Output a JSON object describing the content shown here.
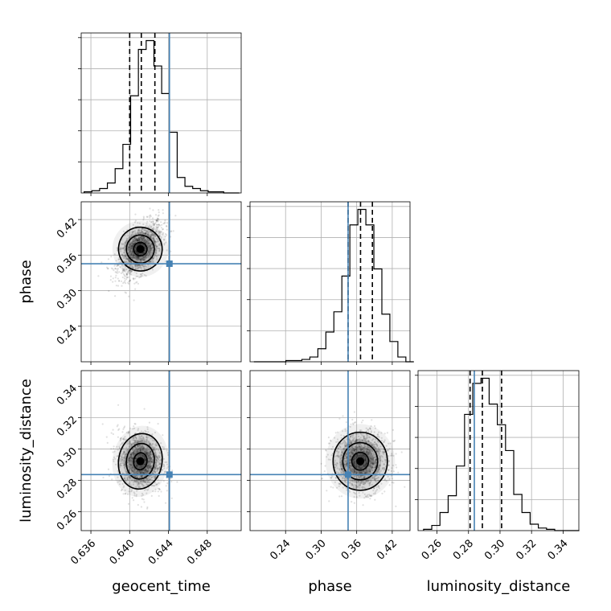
{
  "chart_data": {
    "type": "corner",
    "parameters": [
      {
        "key": "geocent_time",
        "label": "geocent_time",
        "range": [
          0.635,
          0.6515
        ],
        "ticks": [
          0.636,
          0.64,
          0.644,
          0.648
        ],
        "tick_labels": [
          "0.636",
          "0.640",
          "0.644",
          "0.648"
        ],
        "truth": 0.6441,
        "quantiles": [
          0.64,
          0.6412,
          0.6426
        ],
        "hist_bin_start": 0.6353,
        "hist_bin_width": 0.0008,
        "hist_counts": [
          1,
          2,
          4,
          9,
          22,
          44,
          88,
          130,
          138,
          115,
          90,
          55,
          14,
          6,
          4,
          2,
          1,
          1,
          0,
          0
        ]
      },
      {
        "key": "phase",
        "label": "phase",
        "range": [
          0.18,
          0.45
        ],
        "ticks": [
          0.24,
          0.3,
          0.36,
          0.42
        ],
        "tick_labels": [
          "0.24",
          "0.30",
          "0.36",
          "0.42"
        ],
        "truth": 0.3455,
        "quantiles": [
          0.3455,
          0.3665,
          0.3865
        ],
        "hist_bin_start": 0.1865,
        "hist_bin_width": 0.0135,
        "hist_counts": [
          0,
          0,
          0,
          0,
          1,
          1,
          2,
          4,
          11,
          25,
          42,
          72,
          115,
          128,
          115,
          78,
          40,
          17,
          4,
          0
        ]
      },
      {
        "key": "luminosity_distance",
        "label": "luminosity_distance",
        "range": [
          0.248,
          0.35
        ],
        "ticks": [
          0.26,
          0.28,
          0.3,
          0.32,
          0.34
        ],
        "tick_labels": [
          "0.26",
          "0.28",
          "0.30",
          "0.32",
          "0.34"
        ],
        "truth": 0.2837,
        "quantiles": [
          0.281,
          0.2888,
          0.301
        ],
        "hist_bin_start": 0.2515,
        "hist_bin_width": 0.0052,
        "hist_counts": [
          1,
          4,
          14,
          27,
          50,
          90,
          114,
          118,
          98,
          82,
          62,
          28,
          14,
          5,
          2,
          1,
          0,
          0,
          0
        ]
      }
    ],
    "density_peaks": [
      {
        "x": "geocent_time",
        "y": "phase",
        "center": [
          0.6411,
          0.3702
        ]
      },
      {
        "x": "geocent_time",
        "y": "luminosity_distance",
        "center": [
          0.6411,
          0.2922
        ]
      },
      {
        "x": "phase",
        "y": "luminosity_distance",
        "center": [
          0.366,
          0.2922
        ]
      }
    ],
    "grid": true,
    "title": "",
    "legend": "none"
  }
}
